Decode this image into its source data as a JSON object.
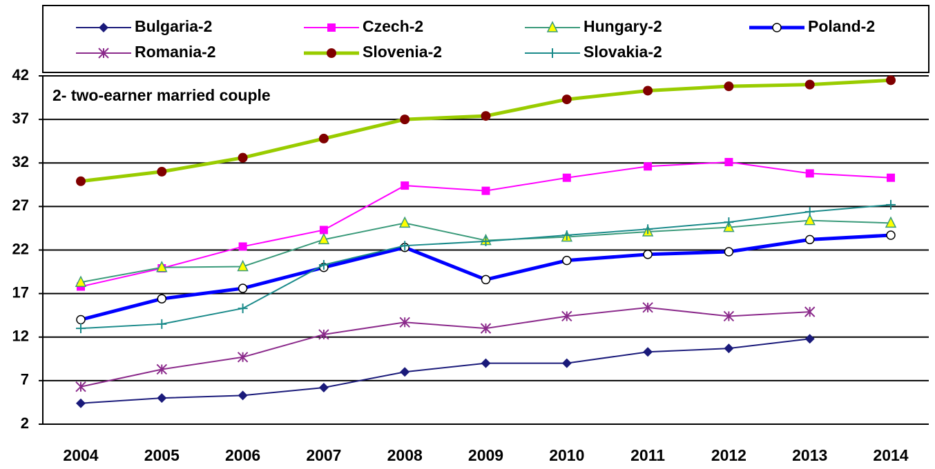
{
  "chart_data": {
    "type": "line",
    "annotation": "2- two-earner married couple",
    "categories": [
      "2004",
      "2005",
      "2006",
      "2007",
      "2008",
      "2009",
      "2010",
      "2011",
      "2012",
      "2013",
      "2014"
    ],
    "ylim": [
      2,
      42
    ],
    "yticks": [
      2,
      7,
      12,
      17,
      22,
      27,
      32,
      37,
      42
    ],
    "grid": true,
    "series": [
      {
        "name": "Bulgaria-2",
        "color": "#1a1a7a",
        "marker": "diamond",
        "marker_color": "#1a1a7a",
        "values": [
          4.4,
          5.0,
          5.3,
          6.2,
          8.0,
          9.0,
          9.0,
          10.3,
          10.7,
          11.8,
          null
        ]
      },
      {
        "name": "Czech-2",
        "color": "#ff00ff",
        "marker": "square",
        "marker_color": "#ff00ff",
        "values": [
          17.8,
          19.9,
          22.4,
          24.3,
          29.4,
          28.8,
          30.3,
          31.6,
          32.1,
          30.8,
          30.3
        ]
      },
      {
        "name": "Hungary-2",
        "color": "#3a9a7a",
        "marker": "triangle",
        "marker_color": "#ffff00",
        "values": [
          18.3,
          20.0,
          20.1,
          23.2,
          25.1,
          23.1,
          23.5,
          24.1,
          24.6,
          25.4,
          25.1
        ]
      },
      {
        "name": "Poland-2",
        "color": "#0000ff",
        "marker": "circle-open",
        "marker_color": "#ffffff",
        "values": [
          14.0,
          16.4,
          17.6,
          20.0,
          22.3,
          18.6,
          20.8,
          21.5,
          21.8,
          23.2,
          23.7
        ]
      },
      {
        "name": "Romania-2",
        "color": "#8b2a8b",
        "marker": "asterisk",
        "marker_color": "#8b2a8b",
        "values": [
          6.3,
          8.3,
          9.7,
          12.3,
          13.7,
          13.0,
          14.4,
          15.4,
          14.4,
          14.9,
          null
        ]
      },
      {
        "name": "Slovenia-2",
        "color": "#99cc00",
        "marker": "circle",
        "marker_color": "#800000",
        "values": [
          29.9,
          31.0,
          32.6,
          34.8,
          37.0,
          37.4,
          39.3,
          40.3,
          40.8,
          41.0,
          41.5
        ]
      },
      {
        "name": "Slovakia-2",
        "color": "#1a8a8a",
        "marker": "plus",
        "marker_color": "#1a8a8a",
        "values": [
          13.0,
          13.5,
          15.3,
          20.3,
          22.5,
          23.0,
          23.7,
          24.4,
          25.2,
          26.4,
          27.2
        ]
      }
    ]
  }
}
